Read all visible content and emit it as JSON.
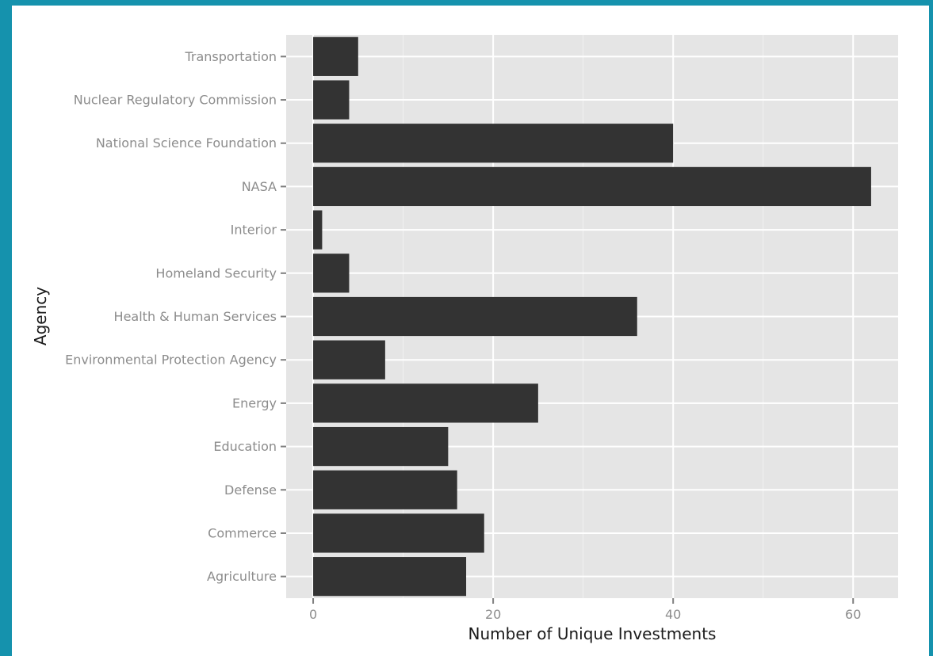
{
  "chart_data": {
    "type": "bar",
    "orientation": "horizontal",
    "title": "",
    "xlabel": "Number of Unique Investments",
    "ylabel": "Agency",
    "categories": [
      "Agriculture",
      "Commerce",
      "Defense",
      "Education",
      "Energy",
      "Environmental Protection Agency",
      "Health & Human Services",
      "Homeland Security",
      "Interior",
      "NASA",
      "National Science Foundation",
      "Nuclear Regulatory Commission",
      "Transportation"
    ],
    "values": [
      17,
      19,
      16,
      15,
      25,
      8,
      36,
      4,
      1,
      62,
      40,
      4,
      5
    ],
    "xlim": [
      -3,
      65
    ],
    "xticks": [
      0,
      20,
      40,
      60
    ],
    "grid": true,
    "background": "#e5e5e5",
    "bar_color": "#333333",
    "gridline_color": "#ffffff"
  }
}
